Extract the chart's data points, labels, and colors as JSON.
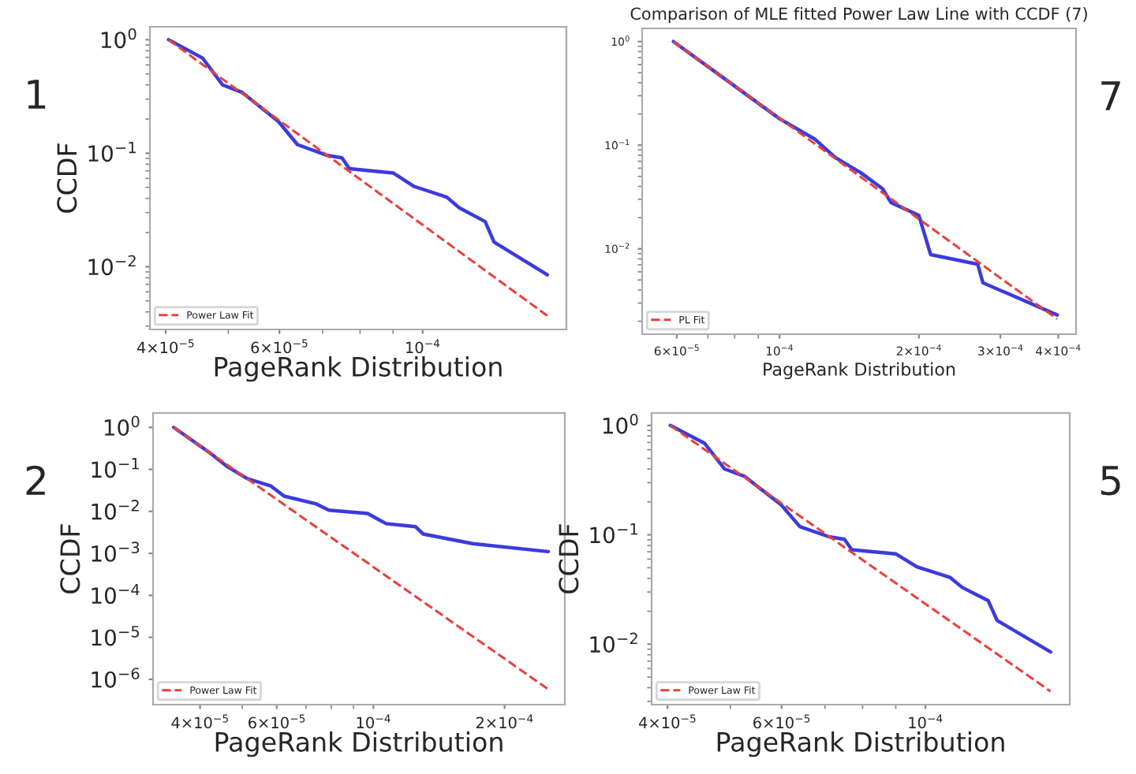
{
  "chart_data": [
    {
      "type": "line",
      "xlabel": "PageRank Distribution",
      "ylabel": "CCDF",
      "annotations": [
        "1"
      ],
      "log": "xy",
      "legend": "bottom left",
      "grid": false,
      "xlim": [
        3.78e-05,
        0.000167
      ],
      "ylim": [
        0.0028,
        1.3
      ],
      "xticks": [
        {
          "value": 4e-05,
          "label": "4×10$^{−5}$"
        },
        {
          "value": 6e-05,
          "label": "6×10$^{−5}$"
        },
        {
          "value": 0.0001,
          "label": "10$^{−4}$"
        }
      ],
      "yticks": [
        {
          "value": 1,
          "label": "10$^{0}$"
        },
        {
          "value": 0.1,
          "label": "10$^{−1}$"
        },
        {
          "value": 0.01,
          "label": "10$^{−2}$"
        }
      ],
      "series": [
        {
          "color": "#3b3bdc",
          "line_style": "solid",
          "x": [
            4.04e-05,
            4.56e-05,
            4.9e-05,
            5.25e-05,
            5.98e-05,
            6.4e-05,
            7.1e-05,
            7.5e-05,
            7.7e-05,
            9e-05,
            9.7e-05,
            0.000109,
            0.000114,
            0.000125,
            0.000129,
            0.000156
          ],
          "values": [
            1.0,
            0.69,
            0.4,
            0.344,
            0.19,
            0.119,
            0.096,
            0.091,
            0.073,
            0.067,
            0.051,
            0.041,
            0.033,
            0.025,
            0.0165,
            0.0085
          ]
        },
        {
          "name": "Power Law Fit",
          "color": "#e8423a",
          "line_style": "dashed",
          "x": [
            4.04e-05,
            0.000156
          ],
          "values": [
            1.0,
            0.0037
          ]
        }
      ]
    },
    {
      "type": "line",
      "title": "Comparison of MLE fitted Power Law Line with CCDF (7)",
      "xlabel": "PageRank Distribution",
      "annotations": [
        "7"
      ],
      "log": "xy",
      "legend": "bottom left",
      "grid": false,
      "xlim": [
        5.05e-05,
        0.000437
      ],
      "ylim": [
        0.0015,
        1.34
      ],
      "xticks": [
        {
          "value": 6e-05,
          "label": "6×10$^{−5}$"
        },
        {
          "value": 0.0001,
          "label": "10$^{−4}$"
        },
        {
          "value": 0.0002,
          "label": "2×10$^{−4}$"
        },
        {
          "value": 0.0003,
          "label": "3×10$^{−4}$"
        },
        {
          "value": 0.0004,
          "label": "4×10$^{−4}$"
        }
      ],
      "yticks": [
        {
          "value": 1,
          "label": "10$^{0}$"
        },
        {
          "value": 0.1,
          "label": "10$^{−1}$"
        },
        {
          "value": 0.01,
          "label": "10$^{−2}$"
        }
      ],
      "series": [
        {
          "color": "#3b3bdc",
          "line_style": "solid",
          "x": [
            5.9e-05,
            7.6e-05,
            0.0001,
            0.000119,
            0.000132,
            0.00015,
            0.000167,
            0.000174,
            0.0002,
            0.000212,
            0.000268,
            0.000275,
            0.000398
          ],
          "values": [
            1.0,
            0.44,
            0.18,
            0.115,
            0.076,
            0.054,
            0.038,
            0.028,
            0.021,
            0.0088,
            0.0071,
            0.0047,
            0.0023
          ]
        },
        {
          "name": "PL Fit",
          "color": "#e8423a",
          "line_style": "dashed",
          "x": [
            5.9e-05,
            0.000398
          ],
          "values": [
            1.0,
            0.0021
          ]
        }
      ]
    },
    {
      "type": "line",
      "xlabel": "PageRank Distribution",
      "ylabel": "CCDF",
      "annotations": [
        "2"
      ],
      "log": "xy",
      "legend": "bottom left",
      "grid": false,
      "xlim": [
        3.12e-05,
        0.000275
      ],
      "ylim": [
        2.5e-07,
        2.2
      ],
      "xticks": [
        {
          "value": 4e-05,
          "label": "4×10$^{−5}$"
        },
        {
          "value": 6e-05,
          "label": "6×10$^{−5}$"
        },
        {
          "value": 0.0001,
          "label": "10$^{−4}$"
        },
        {
          "value": 0.0002,
          "label": "2×10$^{−4}$"
        }
      ],
      "yticks": [
        {
          "value": 1,
          "label": "10$^{0}$"
        },
        {
          "value": 0.1,
          "label": "10$^{−1}$"
        },
        {
          "value": 0.01,
          "label": "10$^{−2}$"
        },
        {
          "value": 0.001,
          "label": "10$^{−3}$"
        },
        {
          "value": 0.0001,
          "label": "10$^{−4}$"
        },
        {
          "value": 1e-05,
          "label": "10$^{−5}$"
        },
        {
          "value": 1e-06,
          "label": "10$^{−6}$"
        }
      ],
      "series": [
        {
          "color": "#3b3bdc",
          "line_style": "solid",
          "x": [
            3.48e-05,
            4.23e-05,
            4.6e-05,
            5.14e-05,
            5.82e-05,
            6.24e-05,
            7.4e-05,
            7.9e-05,
            9.7e-05,
            0.000103,
            0.000107,
            0.000125,
            0.00013,
            0.000169,
            0.000252
          ],
          "values": [
            1.0,
            0.24,
            0.12,
            0.06,
            0.04,
            0.023,
            0.015,
            0.0107,
            0.0089,
            0.0063,
            0.0051,
            0.0043,
            0.0029,
            0.0017,
            0.0011
          ]
        },
        {
          "name": "Power Law Fit",
          "color": "#e8423a",
          "line_style": "dashed",
          "x": [
            3.48e-05,
            0.000252
          ],
          "values": [
            1.0,
            5.8e-07
          ]
        }
      ]
    },
    {
      "type": "line",
      "xlabel": "PageRank Distribution",
      "ylabel": "CCDF",
      "annotations": [
        "5"
      ],
      "log": "xy",
      "legend": "bottom left",
      "grid": false,
      "xlim": [
        3.78e-05,
        0.000167
      ],
      "ylim": [
        0.0028,
        1.3
      ],
      "xticks": [
        {
          "value": 4e-05,
          "label": "4×10$^{−5}$"
        },
        {
          "value": 6e-05,
          "label": "6×10$^{−5}$"
        },
        {
          "value": 0.0001,
          "label": "10$^{−4}$"
        }
      ],
      "yticks": [
        {
          "value": 1,
          "label": "10$^{0}$"
        },
        {
          "value": 0.1,
          "label": "10$^{−1}$"
        },
        {
          "value": 0.01,
          "label": "10$^{−2}$"
        }
      ],
      "series": [
        {
          "color": "#3b3bdc",
          "line_style": "solid",
          "x": [
            4.04e-05,
            4.56e-05,
            4.9e-05,
            5.25e-05,
            5.98e-05,
            6.4e-05,
            7.1e-05,
            7.5e-05,
            7.7e-05,
            9e-05,
            9.7e-05,
            0.000109,
            0.000114,
            0.000125,
            0.000129,
            0.000156
          ],
          "values": [
            1.0,
            0.69,
            0.4,
            0.344,
            0.19,
            0.119,
            0.096,
            0.091,
            0.073,
            0.067,
            0.051,
            0.041,
            0.033,
            0.025,
            0.0165,
            0.0085
          ]
        },
        {
          "name": "Power Law Fit",
          "color": "#e8423a",
          "line_style": "dashed",
          "x": [
            4.04e-05,
            0.000156
          ],
          "values": [
            1.0,
            0.0037
          ]
        }
      ]
    }
  ]
}
